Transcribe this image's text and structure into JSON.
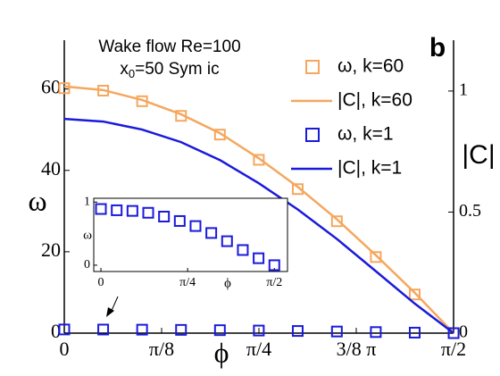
{
  "chart_data": [
    {
      "type": "line",
      "title": "Wake flow Re=100",
      "subtitle": [
        "x",
        "0",
        "=50 Sym ic"
      ],
      "panel_label": "b",
      "x_label": "ϕ",
      "y_label": "ω",
      "y2_label": "|C|",
      "xlim": [
        0,
        1.5708
      ],
      "ylim": [
        0,
        72
      ],
      "y2lim": [
        0,
        1.21
      ],
      "xticks": [
        0,
        {
          "value": 0.3927,
          "label": "π/8"
        },
        {
          "value": 0.7854,
          "label": "π/4"
        },
        {
          "value": 1.1781,
          "label": "3/8 π"
        },
        {
          "value": 1.5708,
          "label": "π/2"
        }
      ],
      "yticks": [
        0,
        20,
        40,
        60
      ],
      "y2ticks": [
        0,
        0.5,
        1
      ],
      "legend": "upper right",
      "series": [
        {
          "name": "ω, k=60",
          "color": "#f5a75e",
          "marker": "square",
          "axis": "y",
          "x": [
            0,
            0.157,
            0.314,
            0.471,
            0.628,
            0.785,
            0.942,
            1.1,
            1.257,
            1.414,
            1.571
          ],
          "values": [
            60.2,
            59.6,
            57,
            53.4,
            48.8,
            42.6,
            35.4,
            27.5,
            18.7,
            9.5,
            0
          ]
        },
        {
          "name": "|C|, k=60",
          "color": "#f5a75e",
          "marker": "none",
          "axis": "y2",
          "x": [
            0,
            0.157,
            0.314,
            0.471,
            0.628,
            0.785,
            0.942,
            1.1,
            1.257,
            1.414,
            1.571
          ],
          "values": [
            1.019,
            1.004,
            0.963,
            0.904,
            0.826,
            0.722,
            0.604,
            0.47,
            0.322,
            0.167,
            0
          ]
        },
        {
          "name": "ω, k=1",
          "color": "#1a1adb",
          "marker": "square",
          "axis": "y",
          "x": [
            0,
            0.157,
            0.314,
            0.471,
            0.628,
            0.785,
            0.942,
            1.1,
            1.257,
            1.414,
            1.571
          ],
          "values": [
            0.9,
            0.88,
            0.85,
            0.8,
            0.73,
            0.64,
            0.53,
            0.4,
            0.26,
            0.12,
            0
          ]
        },
        {
          "name": "|C|, k=1",
          "color": "#1a1adb",
          "marker": "none",
          "axis": "y2",
          "x": [
            0,
            0.157,
            0.314,
            0.471,
            0.628,
            0.785,
            0.942,
            1.1,
            1.257,
            1.414,
            1.571
          ],
          "values": [
            0.885,
            0.874,
            0.841,
            0.789,
            0.715,
            0.619,
            0.511,
            0.389,
            0.256,
            0.122,
            0
          ]
        }
      ]
    },
    {
      "type": "scatter",
      "x_label": "ϕ",
      "y_label": "ω",
      "xlim": [
        -0.065,
        1.69
      ],
      "ylim": [
        -0.1,
        1.06
      ],
      "xticks": [
        0,
        {
          "value": 0.7854,
          "label": "π/4"
        },
        {
          "value": 1.5708,
          "label": "π/2"
        }
      ],
      "yticks": [
        0,
        1
      ],
      "series": [
        {
          "color": "#1a1adb",
          "marker": "square",
          "x": [
            0,
            0.1428,
            0.2856,
            0.4284,
            0.5712,
            0.714,
            0.8568,
            0.9996,
            1.1424,
            1.2852,
            1.428,
            1.5708
          ],
          "values": [
            0.89,
            0.87,
            0.86,
            0.83,
            0.77,
            0.7,
            0.62,
            0.51,
            0.38,
            0.24,
            0.11,
            0
          ]
        }
      ]
    }
  ]
}
